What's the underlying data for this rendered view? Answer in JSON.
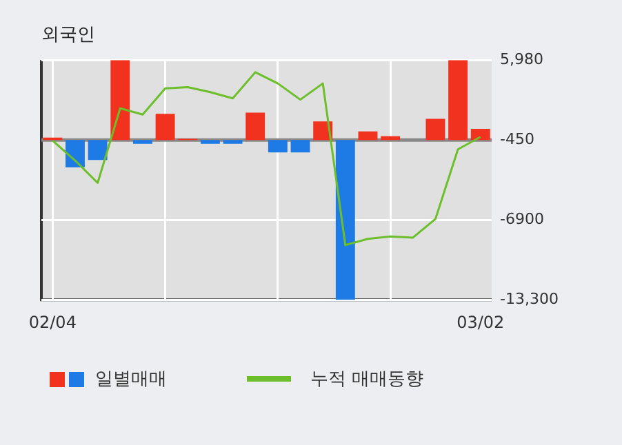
{
  "chart_data": {
    "type": "bar",
    "title": "외국인",
    "categories": [
      "02/04",
      null,
      null,
      null,
      null,
      null,
      null,
      null,
      null,
      null,
      null,
      null,
      null,
      null,
      null,
      null,
      null,
      null,
      null,
      "03/02"
    ],
    "ylim": [
      -13300,
      5980
    ],
    "yticks": [
      {
        "value": 5980,
        "label": "5,980"
      },
      -450,
      -6900,
      {
        "value": -13300,
        "label": "-13,300"
      }
    ],
    "grid": true,
    "legend": "bottom",
    "ref_lines": [
      {
        "axis": "y",
        "value": -450,
        "color": "#888888"
      }
    ],
    "series": [
      {
        "name": "일별매매",
        "base": [
          -450,
          -450,
          -450,
          -450,
          -450,
          -450,
          -450,
          -450,
          -450,
          -450,
          -450,
          -450,
          -450,
          -450,
          -450,
          -450,
          null,
          -450,
          -450,
          -450
        ],
        "values": [
          200,
          -2200,
          -1600,
          6430,
          -300,
          2100,
          100,
          -300,
          -300,
          2200,
          -1000,
          -1000,
          1500,
          -12850,
          700,
          300,
          null,
          1700,
          6430,
          900
        ],
        "colors": [
          "#f0321e",
          "#1e7be6",
          "#1e7be6",
          "#f0321e",
          "#1e7be6",
          "#f0321e",
          "#f0321e",
          "#1e7be6",
          "#1e7be6",
          "#f0321e",
          "#1e7be6",
          "#1e7be6",
          "#f0321e",
          "#1e7be6",
          "#f0321e",
          "#f0321e",
          "#f0321e",
          "#f0321e",
          "#f0321e",
          "#f0321e"
        ]
      },
      {
        "name": "누적 매매동향",
        "type": "line",
        "color": "#6cbf2a",
        "marker": "none",
        "values": [
          -500,
          -2100,
          -3900,
          2100,
          1600,
          3700,
          3800,
          3400,
          2900,
          5000,
          4100,
          2800,
          4100,
          -8900,
          -8400,
          -8200,
          -8300,
          -6800,
          -1200,
          -200
        ]
      }
    ]
  }
}
